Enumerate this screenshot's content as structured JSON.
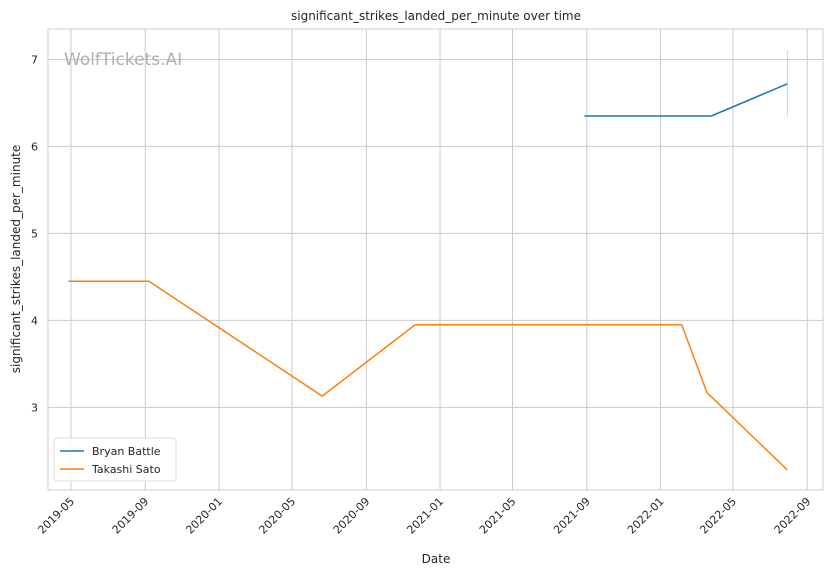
{
  "chart_data": {
    "type": "line",
    "title": "significant_strikes_landed_per_minute over time",
    "xlabel": "Date",
    "ylabel": "significant_strikes_landed_per_minute",
    "watermark": "WolfTickets.AI",
    "grid": true,
    "legend_position": "lower-left",
    "x_ticks": [
      "2019-05",
      "2019-09",
      "2020-01",
      "2020-05",
      "2020-09",
      "2021-01",
      "2021-05",
      "2021-09",
      "2022-01",
      "2022-05",
      "2022-09"
    ],
    "y_ticks": [
      3,
      4,
      5,
      6,
      7
    ],
    "xlim": [
      "2019-03-24",
      "2022-09-27"
    ],
    "ylim": [
      2.05,
      7.35
    ],
    "series": [
      {
        "name": "Bryan Battle",
        "color": "#1f77b4",
        "points": [
          {
            "x": "2021-08-28",
            "y": 6.35
          },
          {
            "x": "2022-03-26",
            "y": 6.35
          },
          {
            "x": "2022-07-30",
            "y": 6.72
          }
        ],
        "error_bar": {
          "x": "2022-07-30",
          "low": 6.35,
          "high": 7.1
        }
      },
      {
        "name": "Takashi Sato",
        "color": "#ff7f0e",
        "points": [
          {
            "x": "2019-04-27",
            "y": 4.45
          },
          {
            "x": "2019-09-07",
            "y": 4.45
          },
          {
            "x": "2020-06-20",
            "y": 3.13
          },
          {
            "x": "2020-11-21",
            "y": 3.95
          },
          {
            "x": "2022-02-05",
            "y": 3.95
          },
          {
            "x": "2022-03-19",
            "y": 3.17
          },
          {
            "x": "2022-07-30",
            "y": 2.28
          }
        ]
      }
    ]
  }
}
